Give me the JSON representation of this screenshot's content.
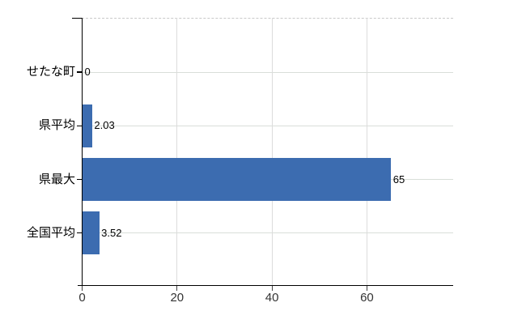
{
  "chart_data": {
    "type": "bar",
    "orientation": "horizontal",
    "title": "",
    "xlabel": "",
    "ylabel": "",
    "categories": [
      "せたな町",
      "県平均",
      "県最大",
      "全国平均"
    ],
    "series": [
      {
        "name": "",
        "values": [
          0,
          2.03,
          65,
          3.52
        ]
      }
    ],
    "value_labels": [
      "0",
      "2.03",
      "65",
      "3.52"
    ],
    "xlim": [
      0,
      78
    ],
    "xticks": [
      0,
      20,
      40,
      60
    ],
    "xtick_labels": [
      "0",
      "20",
      "40",
      "60"
    ],
    "legend": "none",
    "grid": {
      "vertical_gridlines_at_ticks": true,
      "horizontal_gridline_per_category": true,
      "top_border_dashed": true
    },
    "colors": {
      "bar": "#3c6cb0",
      "axis": "#000000",
      "category_gridline": "#d9ded9",
      "vertical_gridline": "#dcdcdc",
      "top_border": "#c9c9c9",
      "tick_mark": "#444444",
      "tick_label": "#333333",
      "value_label": "#000000",
      "category_label": "#000000",
      "background": "#ffffff"
    }
  }
}
